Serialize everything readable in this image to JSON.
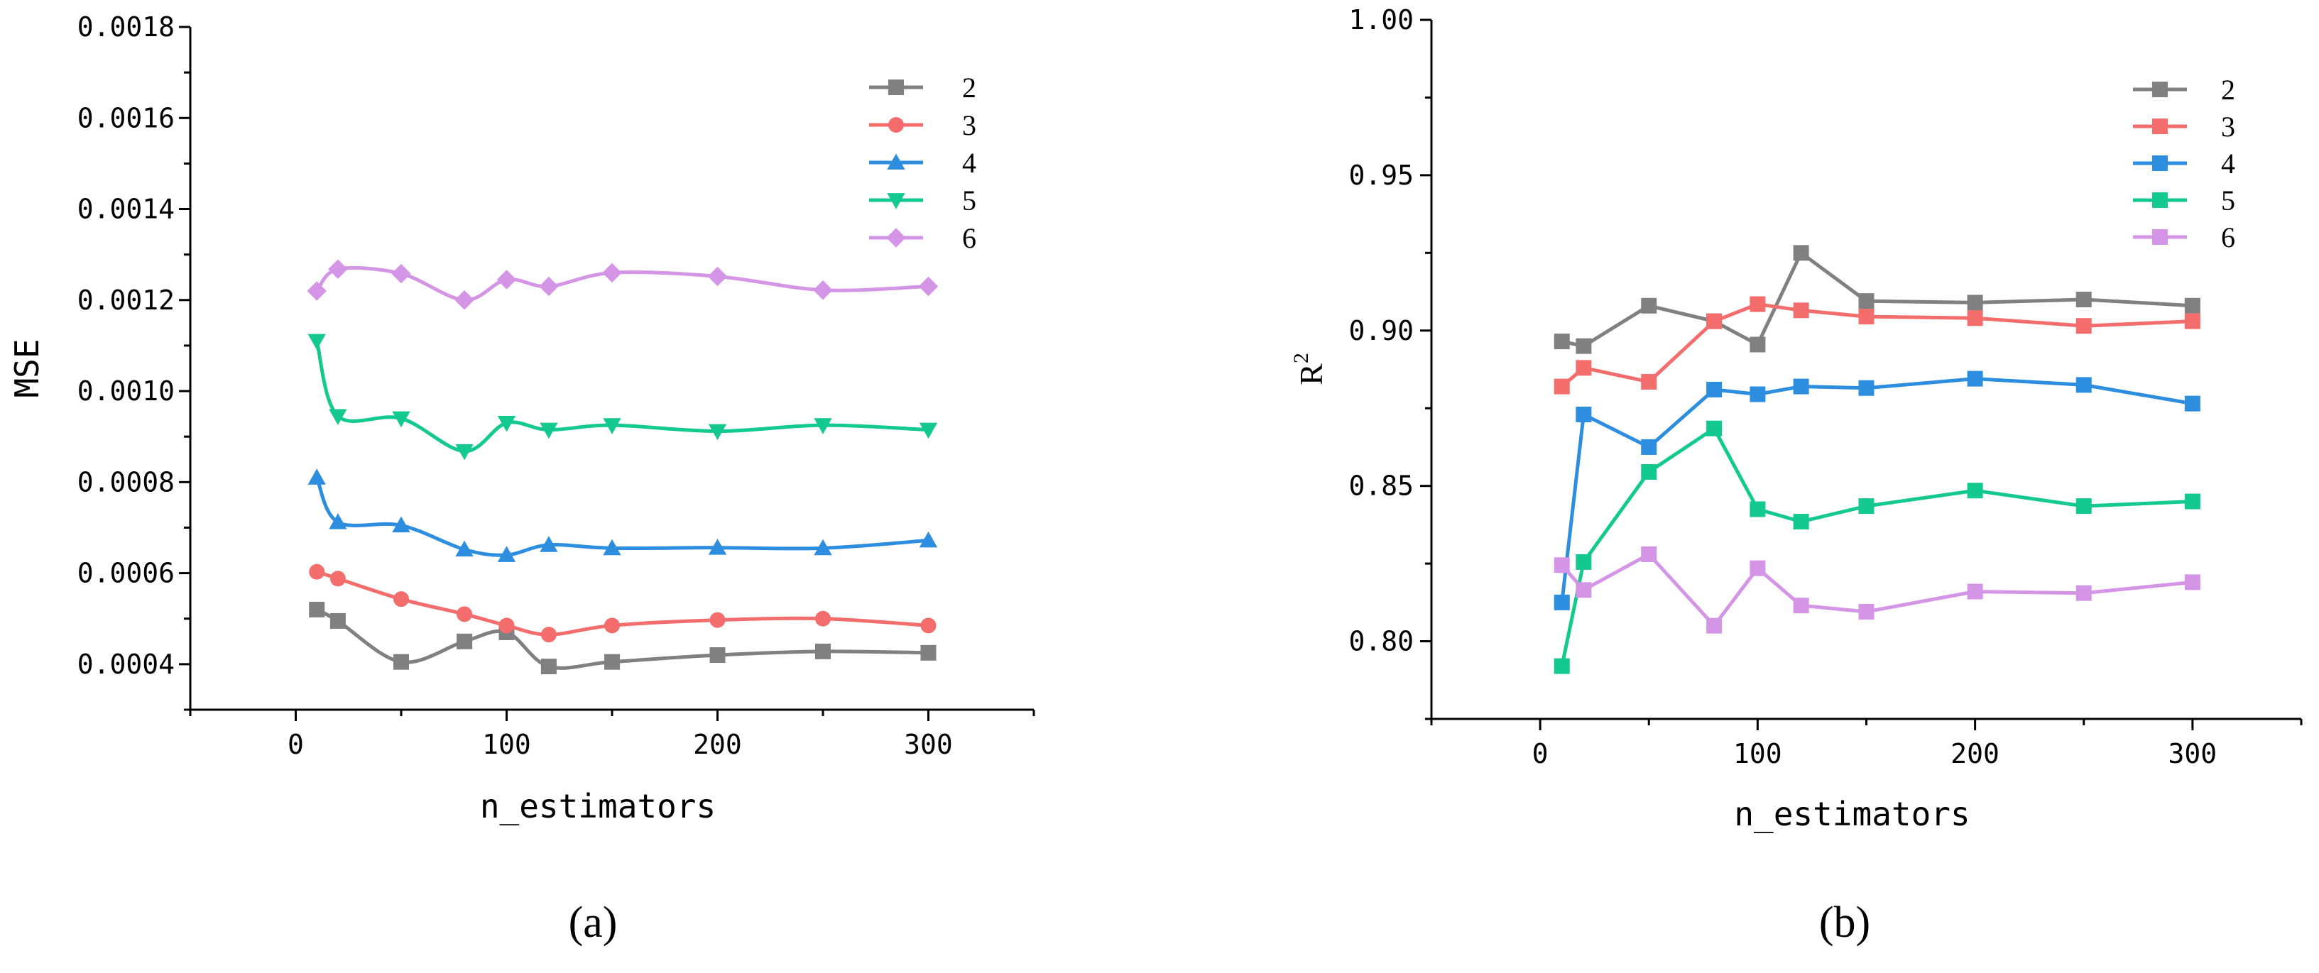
{
  "chart_data": [
    {
      "panel": "a",
      "panel_label": "(a)",
      "type": "line",
      "smooth": true,
      "marker_style": "per-series",
      "xlabel": "n_estimators",
      "ylabel": "MSE",
      "xlim": [
        -50,
        350
      ],
      "ylim": [
        0.0003,
        0.0018
      ],
      "xticks": [
        0,
        100,
        200,
        300
      ],
      "xtick_labels": [
        "0",
        "100",
        "200",
        "300"
      ],
      "yticks": [
        0.0004,
        0.0006,
        0.0008,
        0.001,
        0.0012,
        0.0014,
        0.0016,
        0.0018
      ],
      "ytick_labels": [
        "0.0004",
        "0.0006",
        "0.0008",
        "0.0010",
        "0.0012",
        "0.0014",
        "0.0016",
        "0.0018"
      ],
      "legend_position": "top-right",
      "x": [
        10,
        20,
        50,
        80,
        100,
        120,
        150,
        200,
        250,
        300
      ],
      "series": [
        {
          "name": "2",
          "color": "#808080",
          "marker": "square",
          "values": [
            0.00052,
            0.000495,
            0.000405,
            0.00045,
            0.00047,
            0.000395,
            0.000405,
            0.00042,
            0.000428,
            0.000425
          ]
        },
        {
          "name": "3",
          "color": "#f46d6d",
          "marker": "circle",
          "values": [
            0.000603,
            0.000588,
            0.000543,
            0.00051,
            0.000485,
            0.000465,
            0.000485,
            0.000497,
            0.0005,
            0.000485
          ]
        },
        {
          "name": "4",
          "color": "#2d8ee0",
          "marker": "triangle-up",
          "values": [
            0.00081,
            0.000712,
            0.000705,
            0.000652,
            0.00064,
            0.000662,
            0.000655,
            0.000656,
            0.000655,
            0.000672
          ]
        },
        {
          "name": "5",
          "color": "#14c98d",
          "marker": "triangle-down",
          "values": [
            0.00111,
            0.000945,
            0.00094,
            0.000868,
            0.00093,
            0.000915,
            0.000925,
            0.000912,
            0.000925,
            0.000915
          ]
        },
        {
          "name": "6",
          "color": "#d595e6",
          "marker": "diamond",
          "values": [
            0.00122,
            0.001268,
            0.001258,
            0.0012,
            0.001245,
            0.00123,
            0.00126,
            0.001252,
            0.001222,
            0.00123
          ]
        }
      ]
    },
    {
      "panel": "b",
      "panel_label": "(b)",
      "type": "line",
      "smooth": false,
      "marker_style": "square",
      "xlabel": "n_estimators",
      "ylabel": "R",
      "ylabel_superscript": "2",
      "xlim": [
        -50,
        350
      ],
      "ylim": [
        0.775,
        1.0
      ],
      "xticks": [
        0,
        100,
        200,
        300
      ],
      "xtick_labels": [
        "0",
        "100",
        "200",
        "300"
      ],
      "yticks": [
        0.8,
        0.85,
        0.9,
        0.95,
        1.0
      ],
      "ytick_labels": [
        "0.80",
        "0.85",
        "0.90",
        "0.95",
        "1.00"
      ],
      "legend_position": "top-right",
      "x": [
        10,
        20,
        50,
        80,
        100,
        120,
        150,
        200,
        250,
        300
      ],
      "series": [
        {
          "name": "2",
          "color": "#808080",
          "marker": "square",
          "values": [
            0.8965,
            0.895,
            0.908,
            0.903,
            0.8955,
            0.925,
            0.9095,
            0.909,
            0.91,
            0.908
          ]
        },
        {
          "name": "3",
          "color": "#f46d6d",
          "marker": "square",
          "values": [
            0.882,
            0.888,
            0.8835,
            0.903,
            0.9085,
            0.9065,
            0.9045,
            0.904,
            0.9015,
            0.903
          ]
        },
        {
          "name": "4",
          "color": "#2d8ee0",
          "marker": "square",
          "values": [
            0.8125,
            0.873,
            0.8625,
            0.881,
            0.8795,
            0.882,
            0.8815,
            0.8845,
            0.8825,
            0.8765
          ]
        },
        {
          "name": "5",
          "color": "#14c98d",
          "marker": "square",
          "values": [
            0.792,
            0.8255,
            0.8545,
            0.8685,
            0.8425,
            0.8385,
            0.8435,
            0.8485,
            0.8435,
            0.845
          ]
        },
        {
          "name": "6",
          "color": "#d595e6",
          "marker": "square",
          "values": [
            0.8245,
            0.8165,
            0.828,
            0.805,
            0.8235,
            0.8115,
            0.8095,
            0.816,
            0.8155,
            0.819
          ]
        }
      ]
    }
  ]
}
